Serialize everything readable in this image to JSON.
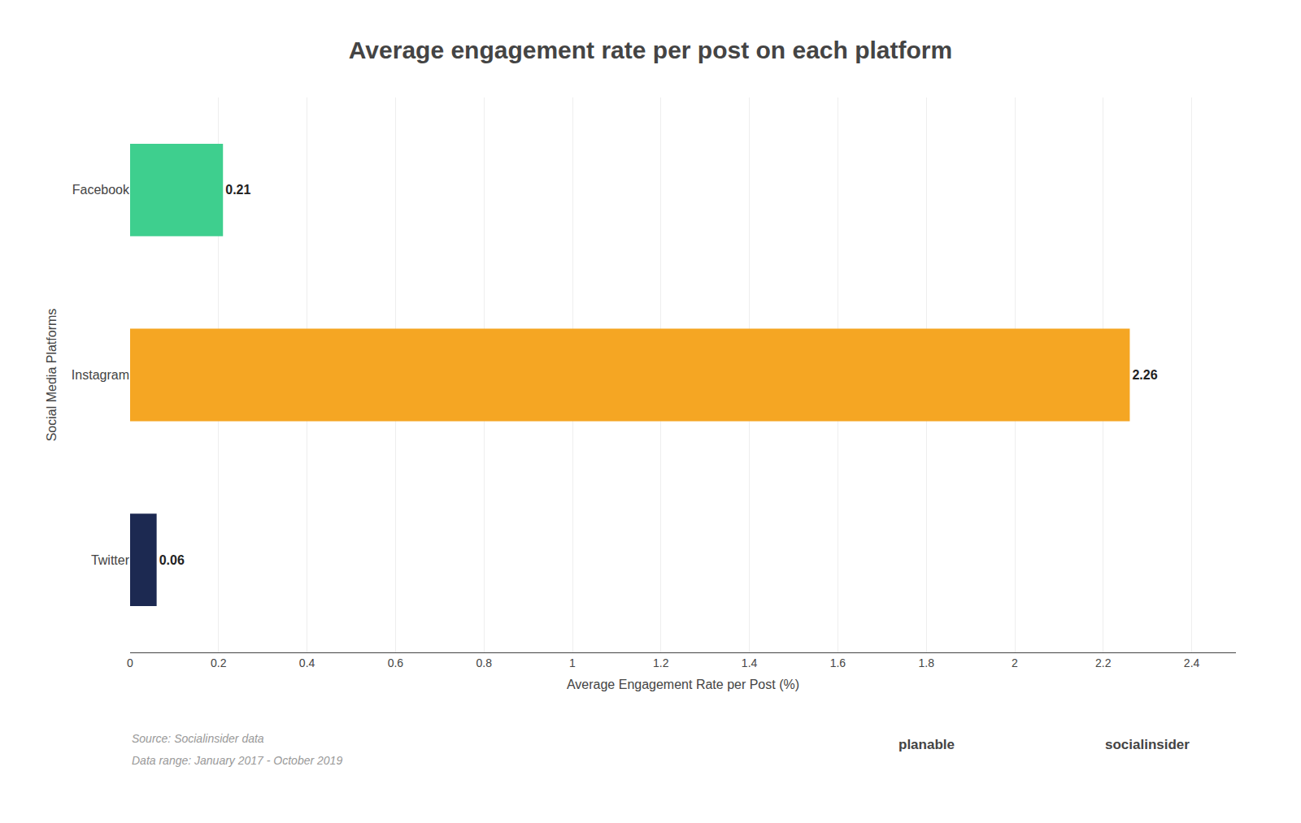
{
  "chart_data": {
    "type": "bar",
    "orientation": "horizontal",
    "title": "Average engagement rate per post on each platform",
    "xlabel": "Average Engagement Rate per Post (%)",
    "ylabel": "Social Media Platforms",
    "categories": [
      "Facebook",
      "Instagram",
      "Twitter"
    ],
    "values": [
      0.21,
      2.26,
      0.06
    ],
    "colors": [
      "#3ecf8e",
      "#f5a623",
      "#1c2951"
    ],
    "xlim": [
      0,
      2.5
    ],
    "xticks": [
      0,
      0.2,
      0.4,
      0.6,
      0.8,
      1,
      1.2,
      1.4,
      1.6,
      1.8,
      2,
      2.2,
      2.4
    ],
    "grid": true,
    "data_labels": true,
    "annotations": [
      "Source: Socialinsider data",
      "Data range: January 2017 - October 2019",
      "planable",
      "socialinsider"
    ]
  }
}
